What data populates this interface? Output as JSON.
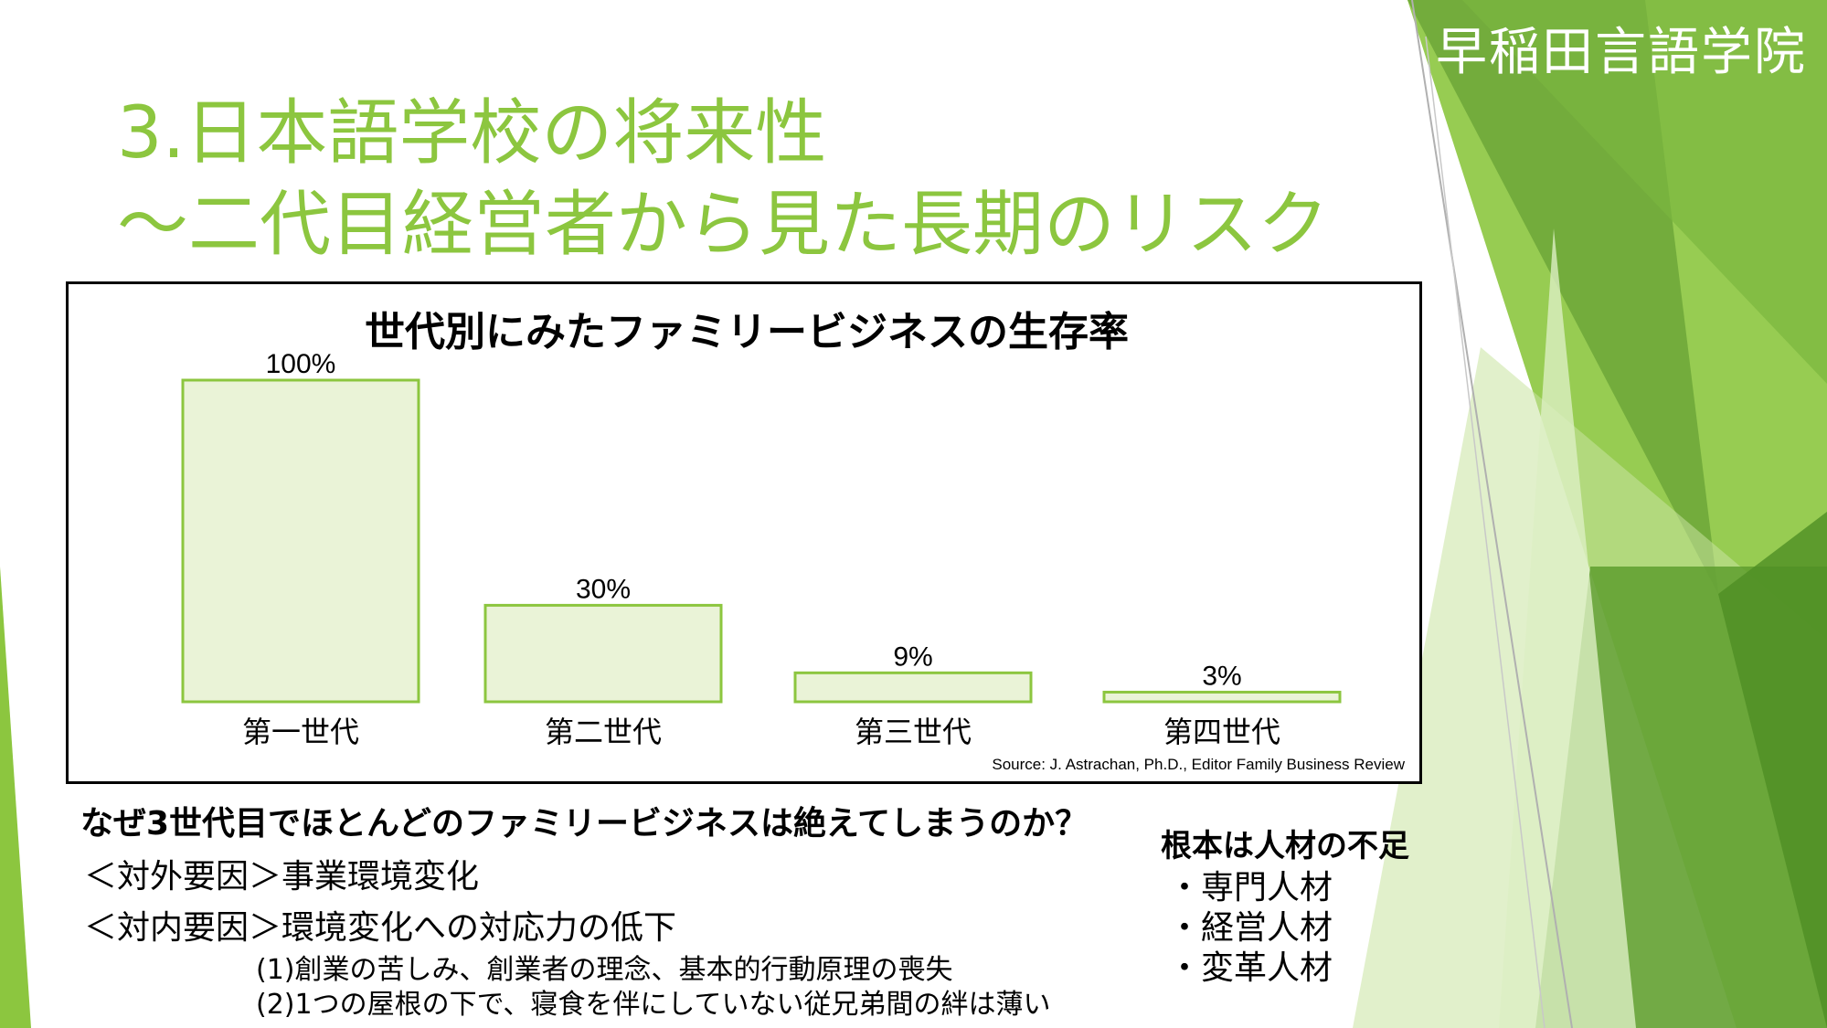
{
  "brand": "早稲田言語学院",
  "title": {
    "line1": "3.日本語学校の将来性",
    "line2": "～二代目経営者から見た長期のリスク"
  },
  "chart_data": {
    "type": "bar",
    "title": "世代別にみたファミリービジネスの生存率",
    "categories": [
      "第一世代",
      "第二世代",
      "第三世代",
      "第四世代"
    ],
    "values": [
      100,
      30,
      9,
      3
    ],
    "value_labels": [
      "100%",
      "30%",
      "9%",
      "3%"
    ],
    "ylim": [
      0,
      100
    ],
    "bar_fill": "#EAF3D7",
    "bar_stroke": "#8CC63F",
    "source": "Source: J. Astrachan, Ph.D., Editor Family Business Review"
  },
  "analysis": {
    "question": "なぜ3世代目でほとんどのファミリービジネスは絶えてしまうのか？",
    "external": "＜対外要因＞事業環境変化",
    "internal": "＜対内要因＞環境変化への対応力の低下",
    "reasons": [
      "(1)創業の苦しみ、創業者の理念、基本的行動原理の喪失",
      "(2)1つの屋根の下で、寝食を伴にしていない従兄弟間の絆は薄い"
    ]
  },
  "root_cause": {
    "heading": "根本は人材の不足",
    "items": [
      "・専門人材",
      "・経営人材",
      "・変革人材"
    ]
  },
  "colors": {
    "accent": "#8CC63F",
    "dark_green": "#5E9E2E",
    "light_green": "#C9E3A0"
  }
}
